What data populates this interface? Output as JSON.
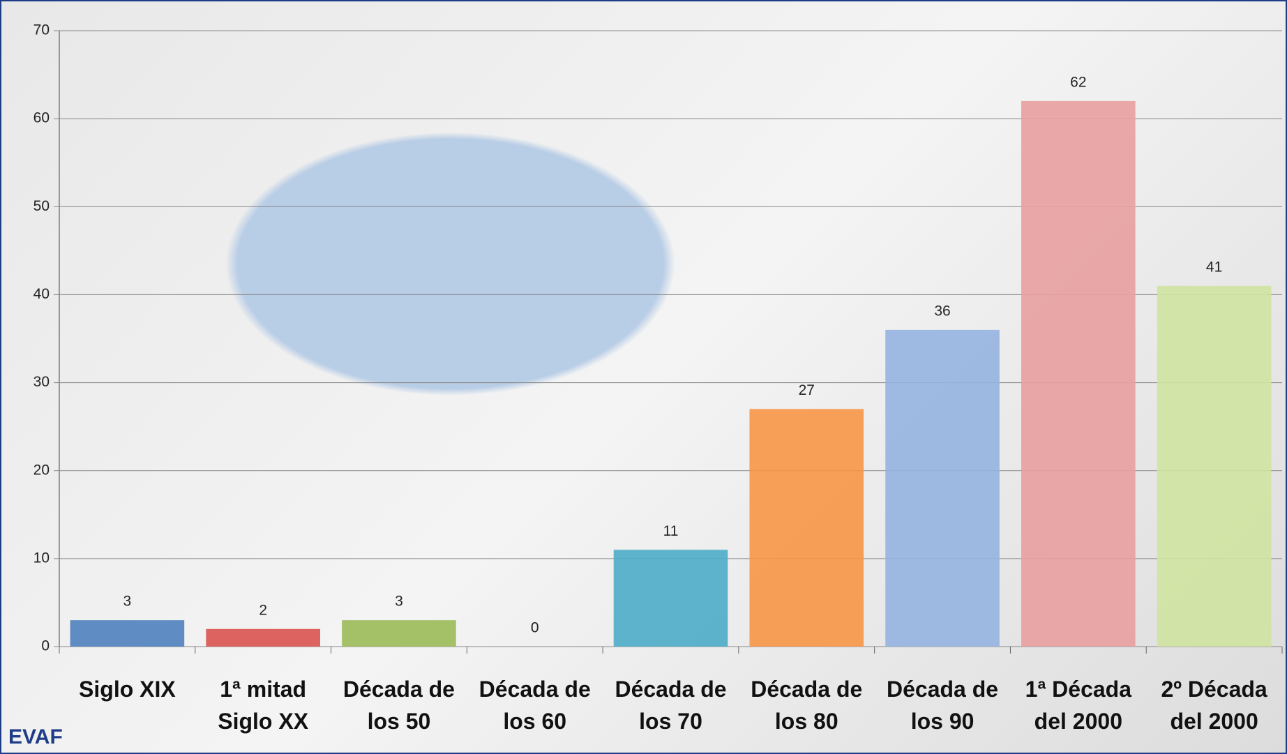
{
  "chart_data": {
    "type": "bar",
    "categories": [
      "Siglo XIX",
      "1ª mitad Siglo XX",
      "Década de los 50",
      "Década de los 60",
      "Década de los 70",
      "Década de los 80",
      "Década de los 90",
      "1ª Década del 2000",
      "2º Década del 2000"
    ],
    "values": [
      3,
      2,
      3,
      0,
      11,
      27,
      36,
      62,
      41
    ],
    "colors": [
      "#4f81bd",
      "#d9534f",
      "#9bbb59",
      "#8064a2",
      "#4bacc6",
      "#f79646",
      "#95b3e0",
      "#e8a09e",
      "#cfe3a0"
    ],
    "ylim": [
      0,
      70
    ],
    "yticks": [
      0,
      10,
      20,
      30,
      40,
      50,
      60,
      70
    ],
    "grid": true
  },
  "logo": "EVAF"
}
